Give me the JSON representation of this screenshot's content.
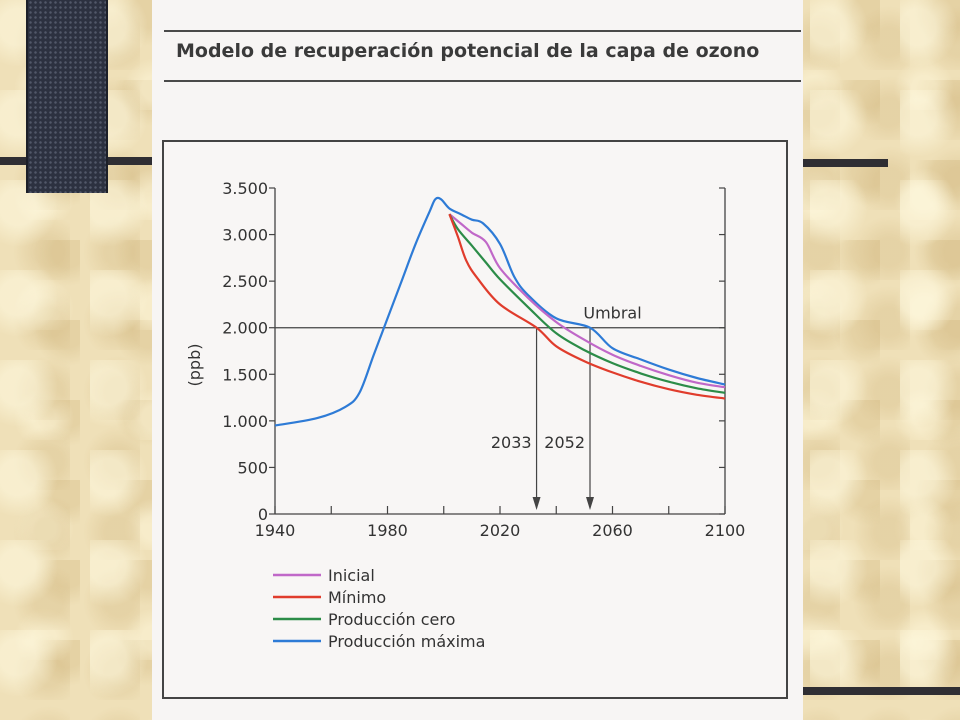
{
  "slide": {
    "colors": {
      "background": "#efe0b8",
      "page": "#f7f5f4",
      "bars": "#2f2e33"
    }
  },
  "chart_data": {
    "type": "line",
    "title": "Modelo de recuperación potencial de la capa de ozono",
    "ylabel": "(ppb)",
    "xlabel": "",
    "xlim": [
      1940,
      2100
    ],
    "ylim": [
      0,
      3500
    ],
    "x_ticks": [
      1940,
      1960,
      1980,
      2000,
      2020,
      2040,
      2060,
      2080,
      2100
    ],
    "x_tick_labels": [
      "1940",
      "1980",
      "2020",
      "2060",
      "2100"
    ],
    "x_tick_label_values": [
      1940,
      1980,
      2020,
      2060,
      2100
    ],
    "y_ticks": [
      0,
      500,
      1000,
      1500,
      2000,
      2500,
      3000,
      3500
    ],
    "y_tick_labels": [
      "0",
      "500",
      "1.000",
      "1.500",
      "2.000",
      "2.500",
      "3.000",
      "3.500"
    ],
    "grid": false,
    "legend_position": "bottom-left",
    "threshold": {
      "label": "Umbral",
      "value": 2000
    },
    "annotations": [
      {
        "label": "2033",
        "x": 2033
      },
      {
        "label": "2052",
        "x": 2052
      }
    ],
    "series": [
      {
        "name": "Inicial",
        "color": "#c068c8",
        "points": [
          [
            2002,
            3220
          ],
          [
            2006,
            3120
          ],
          [
            2010,
            3020
          ],
          [
            2015,
            2920
          ],
          [
            2020,
            2640
          ],
          [
            2030,
            2320
          ],
          [
            2040,
            2060
          ],
          [
            2050,
            1870
          ],
          [
            2060,
            1710
          ],
          [
            2070,
            1590
          ],
          [
            2080,
            1490
          ],
          [
            2090,
            1410
          ],
          [
            2100,
            1360
          ]
        ]
      },
      {
        "name": "Mínimo",
        "color": "#e03c2c",
        "points": [
          [
            2002,
            3220
          ],
          [
            2005,
            2980
          ],
          [
            2008,
            2720
          ],
          [
            2012,
            2530
          ],
          [
            2020,
            2250
          ],
          [
            2033,
            2000
          ],
          [
            2040,
            1800
          ],
          [
            2050,
            1640
          ],
          [
            2060,
            1520
          ],
          [
            2070,
            1420
          ],
          [
            2080,
            1340
          ],
          [
            2090,
            1280
          ],
          [
            2100,
            1240
          ]
        ]
      },
      {
        "name": "Producción cero",
        "color": "#2c8c48",
        "points": [
          [
            2002,
            3220
          ],
          [
            2005,
            3060
          ],
          [
            2010,
            2880
          ],
          [
            2015,
            2700
          ],
          [
            2020,
            2520
          ],
          [
            2030,
            2220
          ],
          [
            2040,
            1940
          ],
          [
            2050,
            1760
          ],
          [
            2060,
            1620
          ],
          [
            2070,
            1510
          ],
          [
            2080,
            1420
          ],
          [
            2090,
            1350
          ],
          [
            2100,
            1300
          ]
        ]
      },
      {
        "name": "Producción máxima",
        "color": "#2e7bd6",
        "points": [
          [
            1940,
            950
          ],
          [
            1955,
            1030
          ],
          [
            1965,
            1150
          ],
          [
            1970,
            1300
          ],
          [
            1975,
            1700
          ],
          [
            1980,
            2100
          ],
          [
            1985,
            2500
          ],
          [
            1990,
            2900
          ],
          [
            1995,
            3250
          ],
          [
            1997,
            3380
          ],
          [
            1999,
            3380
          ],
          [
            2002,
            3280
          ],
          [
            2006,
            3220
          ],
          [
            2010,
            3160
          ],
          [
            2014,
            3120
          ],
          [
            2020,
            2900
          ],
          [
            2025,
            2550
          ],
          [
            2030,
            2350
          ],
          [
            2040,
            2100
          ],
          [
            2052,
            2000
          ],
          [
            2060,
            1780
          ],
          [
            2070,
            1660
          ],
          [
            2080,
            1550
          ],
          [
            2090,
            1460
          ],
          [
            2100,
            1390
          ]
        ]
      }
    ]
  }
}
